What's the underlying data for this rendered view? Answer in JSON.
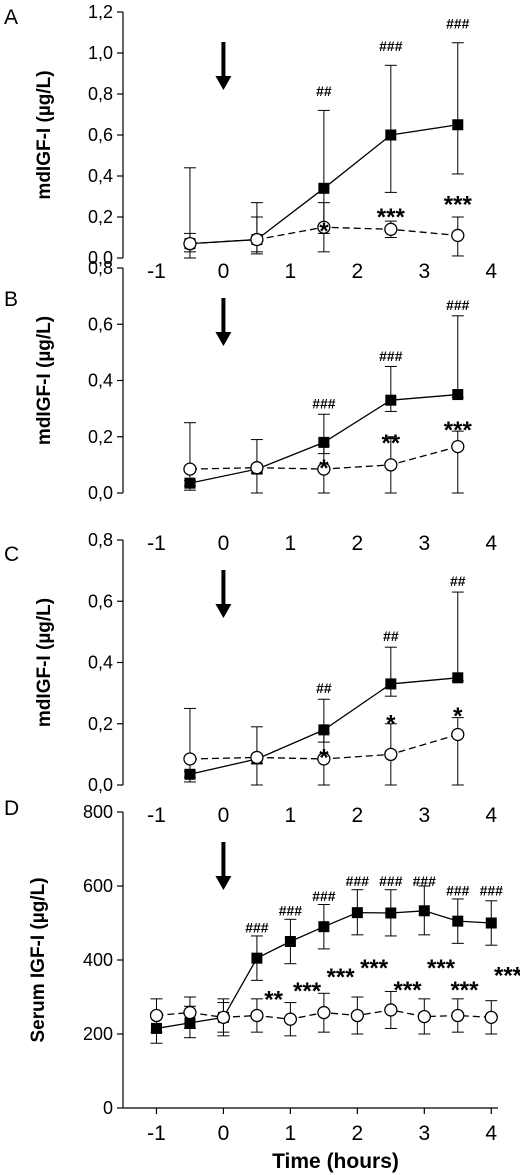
{
  "chart_data": [
    {
      "type": "line",
      "panel_letter": "A",
      "ylabel": "mdIGF-I (µg/L)",
      "ylim": [
        0,
        1.2
      ],
      "yticks": [
        0,
        0.2,
        0.4,
        0.6,
        0.8,
        1.0,
        1.2
      ],
      "ytick_labels": [
        "0,0",
        "0,2",
        "0,4",
        "0,6",
        "0,8",
        "1,0",
        "1,2"
      ],
      "xlim": [
        -1.5,
        4.25
      ],
      "xtick_labels_shown": false,
      "arrow_x": 0,
      "series": [
        {
          "marker": "filled-square",
          "line": "solid",
          "x": [
            -0.5,
            0.5,
            1.5,
            2.5,
            3.5
          ],
          "y": [
            0.07,
            0.09,
            0.34,
            0.6,
            0.65
          ],
          "err_upper": [
            0.44,
            0.2,
            0.72,
            0.94,
            1.05
          ],
          "err_lower": [
            0.0,
            0.02,
            0.12,
            0.32,
            0.41
          ]
        },
        {
          "marker": "open-circle",
          "line": "dashed",
          "x": [
            -0.5,
            0.5,
            1.5,
            2.5,
            3.5
          ],
          "y": [
            0.07,
            0.09,
            0.15,
            0.14,
            0.11
          ],
          "err_upper": [
            0.12,
            0.27,
            0.27,
            0.18,
            0.2
          ],
          "err_lower": [
            0.03,
            0.03,
            0.03,
            0.1,
            0.01
          ]
        }
      ],
      "annotations": [
        {
          "text": "##",
          "x": 1.5,
          "y": 0.79,
          "kind": "hash"
        },
        {
          "text": "###",
          "x": 2.5,
          "y": 1.01,
          "kind": "hash"
        },
        {
          "text": "###",
          "x": 3.5,
          "y": 1.12,
          "kind": "hash"
        },
        {
          "text": "*",
          "x": 1.5,
          "y": 0.16,
          "kind": "star"
        },
        {
          "text": "***",
          "x": 2.5,
          "y": 0.23,
          "kind": "star"
        },
        {
          "text": "***",
          "x": 3.5,
          "y": 0.29,
          "kind": "star"
        }
      ]
    },
    {
      "type": "line",
      "panel_letter": "B",
      "ylabel": "mdIGF-I (µg/L)",
      "ylim": [
        0,
        0.8
      ],
      "yticks": [
        0,
        0.2,
        0.4,
        0.6,
        0.8
      ],
      "ytick_labels": [
        "0,0",
        "0,2",
        "0,4",
        "0,6",
        "0,8"
      ],
      "xlim": [
        -1.5,
        4.25
      ],
      "xticks": [
        -1,
        0,
        1,
        2,
        3,
        4
      ],
      "xtick_labels": [
        "-1",
        "0",
        "1",
        "2",
        "3",
        "4"
      ],
      "xtick_labels_shown": true,
      "arrow_x": 0,
      "series": [
        {
          "marker": "filled-square",
          "line": "solid",
          "x": [
            -0.5,
            0.5,
            1.5,
            2.5,
            3.5
          ],
          "y": [
            0.035,
            0.085,
            0.18,
            0.33,
            0.35
          ],
          "err_upper": [
            0.045,
            0.1,
            0.28,
            0.45,
            0.63
          ],
          "err_lower": [
            0.025,
            0.07,
            0.14,
            0.29,
            0.34
          ]
        },
        {
          "marker": "open-circle",
          "line": "dashed",
          "x": [
            -0.5,
            0.5,
            1.5,
            2.5,
            3.5
          ],
          "y": [
            0.085,
            0.09,
            0.085,
            0.1,
            0.165
          ],
          "err_upper": [
            0.25,
            0.19,
            0.17,
            0.2,
            0.22
          ],
          "err_lower": [
            0.01,
            0.0,
            0.0,
            0.0,
            0.0
          ]
        }
      ],
      "annotations": [
        {
          "text": "###",
          "x": 1.5,
          "y": 0.3,
          "kind": "hash"
        },
        {
          "text": "###",
          "x": 2.5,
          "y": 0.47,
          "kind": "hash"
        },
        {
          "text": "###",
          "x": 3.5,
          "y": 0.65,
          "kind": "hash"
        },
        {
          "text": "*",
          "x": 1.5,
          "y": 0.11,
          "kind": "star"
        },
        {
          "text": "**",
          "x": 2.5,
          "y": 0.2,
          "kind": "star"
        },
        {
          "text": "***",
          "x": 3.5,
          "y": 0.245,
          "kind": "star"
        }
      ]
    },
    {
      "type": "line",
      "panel_letter": "C",
      "ylabel": "mdIGF-I (µg/L)",
      "ylim": [
        0,
        0.8
      ],
      "yticks": [
        0,
        0.2,
        0.4,
        0.6,
        0.8
      ],
      "ytick_labels": [
        "0,0",
        "0,2",
        "0,4",
        "0,6",
        "0,8"
      ],
      "xlim": [
        -1.5,
        4.25
      ],
      "xticks": [
        -1,
        0,
        1,
        2,
        3,
        4
      ],
      "xtick_labels": [
        "-1",
        "0",
        "1",
        "2",
        "3",
        "4"
      ],
      "xtick_labels_shown": true,
      "arrow_x": 0,
      "series": [
        {
          "marker": "filled-square",
          "line": "solid",
          "x": [
            -0.5,
            0.5,
            1.5,
            2.5,
            3.5
          ],
          "y": [
            0.035,
            0.085,
            0.18,
            0.33,
            0.35
          ],
          "err_upper": [
            0.045,
            0.1,
            0.28,
            0.45,
            0.63
          ],
          "err_lower": [
            0.025,
            0.07,
            0.14,
            0.29,
            0.34
          ]
        },
        {
          "marker": "open-circle",
          "line": "dashed",
          "x": [
            -0.5,
            0.5,
            1.5,
            2.5,
            3.5
          ],
          "y": [
            0.085,
            0.09,
            0.085,
            0.1,
            0.165
          ],
          "err_upper": [
            0.25,
            0.19,
            0.17,
            0.2,
            0.22
          ],
          "err_lower": [
            0.01,
            0.0,
            0.0,
            0.0,
            0.0
          ]
        }
      ],
      "annotations": [
        {
          "text": "##",
          "x": 1.5,
          "y": 0.3,
          "kind": "hash"
        },
        {
          "text": "##",
          "x": 2.5,
          "y": 0.47,
          "kind": "hash"
        },
        {
          "text": "##",
          "x": 3.5,
          "y": 0.65,
          "kind": "hash"
        },
        {
          "text": "*",
          "x": 1.5,
          "y": 0.11,
          "kind": "star"
        },
        {
          "text": "*",
          "x": 2.5,
          "y": 0.22,
          "kind": "star"
        },
        {
          "text": "*",
          "x": 3.5,
          "y": 0.245,
          "kind": "star"
        }
      ]
    },
    {
      "type": "line",
      "panel_letter": "D",
      "ylabel": "Serum IGF-I (µg/L)",
      "xlabel": "Time (hours)",
      "ylim": [
        0,
        800
      ],
      "yticks": [
        0,
        200,
        400,
        600,
        800
      ],
      "ytick_labels": [
        "0",
        "200",
        "400",
        "600",
        "800"
      ],
      "xlim": [
        -1.5,
        4.25
      ],
      "xticks": [
        -1,
        0,
        1,
        2,
        3,
        4
      ],
      "xtick_labels": [
        "-1",
        "0",
        "1",
        "2",
        "3",
        "4"
      ],
      "xtick_labels_shown": true,
      "bottom_xtick_labels": [
        "-1",
        "0",
        "1",
        "2",
        "3",
        "4"
      ],
      "arrow_x": 0,
      "series": [
        {
          "marker": "filled-square",
          "line": "solid",
          "x": [
            -1,
            -0.5,
            0,
            0.5,
            1,
            1.5,
            2,
            2.5,
            3,
            3.5,
            4
          ],
          "y": [
            215,
            230,
            245,
            405,
            450,
            490,
            528,
            527,
            533,
            505,
            500
          ],
          "err_upper": [
            255,
            275,
            285,
            465,
            510,
            550,
            590,
            590,
            600,
            565,
            560
          ],
          "err_lower": [
            175,
            190,
            205,
            345,
            390,
            430,
            468,
            465,
            468,
            445,
            440
          ]
        },
        {
          "marker": "open-circle",
          "line": "dashed",
          "x": [
            -1,
            -0.5,
            0,
            0.5,
            1,
            1.5,
            2,
            2.5,
            3,
            3.5,
            4
          ],
          "y": [
            250,
            258,
            245,
            250,
            240,
            258,
            250,
            265,
            247,
            250,
            245
          ],
          "err_upper": [
            295,
            300,
            295,
            295,
            285,
            310,
            300,
            315,
            295,
            295,
            290
          ],
          "err_lower": [
            205,
            215,
            195,
            205,
            195,
            205,
            200,
            215,
            200,
            205,
            200
          ]
        }
      ],
      "annotations": [
        {
          "text": "###",
          "x": 0.5,
          "y": 475,
          "kind": "hash"
        },
        {
          "text": "###",
          "x": 1,
          "y": 520,
          "kind": "hash"
        },
        {
          "text": "###",
          "x": 1.5,
          "y": 560,
          "kind": "hash"
        },
        {
          "text": "###",
          "x": 2,
          "y": 600,
          "kind": "hash"
        },
        {
          "text": "###",
          "x": 2.5,
          "y": 600,
          "kind": "hash"
        },
        {
          "text": "###",
          "x": 3,
          "y": 600,
          "kind": "hash"
        },
        {
          "text": "###",
          "x": 3.5,
          "y": 575,
          "kind": "hash"
        },
        {
          "text": "###",
          "x": 4,
          "y": 575,
          "kind": "hash"
        },
        {
          "text": "**",
          "x": 0.75,
          "y": 310,
          "kind": "star"
        },
        {
          "text": "***",
          "x": 1.25,
          "y": 332,
          "kind": "star"
        },
        {
          "text": "***",
          "x": 1.75,
          "y": 370,
          "kind": "star"
        },
        {
          "text": "***",
          "x": 2.25,
          "y": 395,
          "kind": "star"
        },
        {
          "text": "***",
          "x": 2.75,
          "y": 335,
          "kind": "star"
        },
        {
          "text": "***",
          "x": 3.25,
          "y": 395,
          "kind": "star"
        },
        {
          "text": "***",
          "x": 3.6,
          "y": 335,
          "kind": "star"
        },
        {
          "text": "***",
          "x": 4.25,
          "y": 375,
          "kind": "star"
        }
      ]
    }
  ]
}
